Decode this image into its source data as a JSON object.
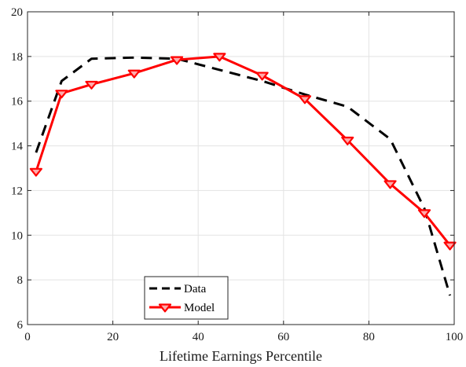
{
  "chart_data": {
    "type": "line",
    "title": "",
    "xlabel": "Lifetime Earnings Percentile",
    "ylabel": "",
    "xlim": [
      0,
      100
    ],
    "ylim": [
      6,
      20
    ],
    "xticks": [
      0,
      20,
      40,
      60,
      80,
      100
    ],
    "yticks": [
      6,
      8,
      10,
      12,
      14,
      16,
      18,
      20
    ],
    "grid": true,
    "legend_position": "bottom-left",
    "series": [
      {
        "name": "Data",
        "style": "dashed",
        "color": "#000000",
        "x": [
          2,
          8,
          15,
          25,
          35,
          45,
          55,
          65,
          75,
          85,
          93,
          99
        ],
        "y": [
          13.7,
          16.9,
          17.9,
          17.95,
          17.9,
          17.4,
          16.9,
          16.3,
          15.75,
          14.3,
          11.2,
          7.3
        ]
      },
      {
        "name": "Model",
        "style": "solid",
        "marker": "triangle-down",
        "color": "#ff0000",
        "x": [
          2,
          8,
          15,
          25,
          35,
          45,
          55,
          65,
          75,
          85,
          93,
          99
        ],
        "y": [
          12.85,
          16.35,
          16.75,
          17.25,
          17.85,
          18.0,
          17.15,
          16.1,
          14.25,
          12.3,
          11.0,
          9.55
        ]
      }
    ]
  }
}
